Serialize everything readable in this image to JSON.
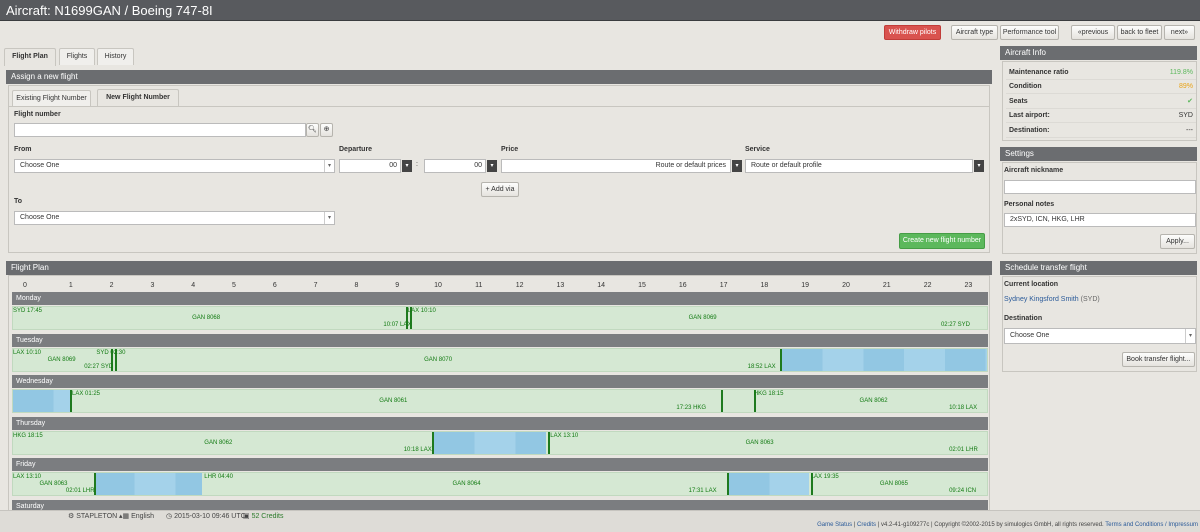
{
  "title": "Aircraft: N1699GAN / Boeing 747-8I",
  "top_buttons": {
    "withdraw": "Withdraw pilots",
    "aircraft_type": "Aircraft type",
    "performance": "Performance tool",
    "previous": "previous",
    "back": "back to fleet",
    "next": "next"
  },
  "tabs": [
    "Flight Plan",
    "Flights",
    "History"
  ],
  "assign": {
    "header": "Assign a new flight",
    "subtabs": [
      "Existing Flight Number",
      "New Flight Number"
    ],
    "flight_number_label": "Flight number",
    "from_label": "From",
    "from_value": "Choose One",
    "departure_label": "Departure",
    "dep_hour": "00",
    "dep_min": "00",
    "price_label": "Price",
    "price_value": "Route or default prices",
    "service_label": "Service",
    "service_value": "Route or default profile",
    "add_via": "+ Add via",
    "to_label": "To",
    "to_value": "Choose One",
    "create_button": "Create new flight number"
  },
  "flight_plan": {
    "header": "Flight Plan",
    "hours": [
      "0",
      "1",
      "2",
      "3",
      "4",
      "5",
      "6",
      "7",
      "8",
      "9",
      "10",
      "11",
      "12",
      "13",
      "14",
      "15",
      "16",
      "17",
      "18",
      "19",
      "20",
      "21",
      "22",
      "23"
    ],
    "days": [
      {
        "name": "Monday",
        "labels": [
          {
            "t": "SYD 17:45",
            "h": 0.0,
            "row": 0
          },
          {
            "t": "GAN 8068",
            "h": 4.4,
            "row": 1
          },
          {
            "t": "10:07 LAX",
            "h": 9.1,
            "row": 2
          },
          {
            "t": "LAX 10:10",
            "h": 9.7,
            "row": 0
          },
          {
            "t": "GAN 8069",
            "h": 16.6,
            "row": 1
          },
          {
            "t": "02:27 SYD",
            "h": 22.8,
            "row": 2
          }
        ],
        "lines": [
          9.65,
          9.75
        ],
        "blocks": []
      },
      {
        "name": "Tuesday",
        "labels": [
          {
            "t": "LAX 10:10",
            "h": 0.0,
            "row": 0
          },
          {
            "t": "GAN 8069",
            "h": 0.85,
            "row": 1
          },
          {
            "t": "02:27 SYD",
            "h": 1.75,
            "row": 2
          },
          {
            "t": "SYD 02:30",
            "h": 2.05,
            "row": 0
          },
          {
            "t": "GAN 8070",
            "h": 10.1,
            "row": 1
          },
          {
            "t": "18:52 LAX",
            "h": 18.05,
            "row": 2
          }
        ],
        "lines": [
          2.4,
          2.5,
          18.85
        ],
        "blocks": [
          [
            18.9,
            24.0
          ]
        ]
      },
      {
        "name": "Wednesday",
        "labels": [
          {
            "t": "LAX 01:25",
            "h": 1.45,
            "row": 0
          },
          {
            "t": "GAN 8061",
            "h": 9.0,
            "row": 1
          },
          {
            "t": "17:23 HKG",
            "h": 16.3,
            "row": 2
          },
          {
            "t": "HKG 18:15",
            "h": 18.2,
            "row": 0
          },
          {
            "t": "GAN 8062",
            "h": 20.8,
            "row": 1
          },
          {
            "t": "10:18 LAX",
            "h": 23.0,
            "row": 2
          }
        ],
        "lines": [
          1.4,
          17.4,
          18.2
        ],
        "blocks": [
          [
            0.0,
            1.4
          ]
        ]
      },
      {
        "name": "Thursday",
        "labels": [
          {
            "t": "HKG 18:15",
            "h": 0.0,
            "row": 0
          },
          {
            "t": "GAN 8062",
            "h": 4.7,
            "row": 1
          },
          {
            "t": "10:18 LAX",
            "h": 9.6,
            "row": 2
          },
          {
            "t": "LAX 13:10",
            "h": 13.2,
            "row": 0
          },
          {
            "t": "GAN 8063",
            "h": 18.0,
            "row": 1
          },
          {
            "t": "02:01 LHR",
            "h": 23.0,
            "row": 2
          }
        ],
        "lines": [
          10.3,
          13.15
        ],
        "blocks": [
          [
            10.35,
            13.1
          ]
        ]
      },
      {
        "name": "Friday",
        "labels": [
          {
            "t": "LAX 13:10",
            "h": 0.0,
            "row": 0
          },
          {
            "t": "GAN 8063",
            "h": 0.65,
            "row": 1
          },
          {
            "t": "02:01 LHR",
            "h": 1.3,
            "row": 2
          },
          {
            "t": "LHR 04:40",
            "h": 4.7,
            "row": 0
          },
          {
            "t": "GAN 8064",
            "h": 10.8,
            "row": 1
          },
          {
            "t": "17:31 LAX",
            "h": 16.6,
            "row": 2
          },
          {
            "t": "LAX 19:35",
            "h": 19.6,
            "row": 0
          },
          {
            "t": "GAN 8065",
            "h": 21.3,
            "row": 1
          },
          {
            "t": "09:24 ICN",
            "h": 23.0,
            "row": 2
          }
        ],
        "lines": [
          2.0,
          17.55,
          19.6
        ],
        "blocks": [
          [
            2.0,
            4.65
          ],
          [
            17.6,
            19.55
          ]
        ]
      },
      {
        "name": "Saturday",
        "labels": [],
        "lines": [],
        "blocks": []
      }
    ]
  },
  "aircraft_info": {
    "header": "Aircraft Info",
    "rows": [
      {
        "k": "Maintenance ratio",
        "v": "119.8%",
        "color": "#5cb85c"
      },
      {
        "k": "Condition",
        "v": "89%",
        "color": "#e8a317"
      },
      {
        "k": "Seats",
        "v": "✔",
        "color": "#5cb85c"
      },
      {
        "k": "Last airport:",
        "v": "SYD",
        "color": "#333333"
      },
      {
        "k": "Destination:",
        "v": "---",
        "color": "#333333"
      }
    ]
  },
  "settings": {
    "header": "Settings",
    "nickname_label": "Aircraft nickname",
    "nickname_value": "",
    "notes_label": "Personal notes",
    "notes_value": "2xSYD, ICN, HKG, LHR",
    "apply": "Apply..."
  },
  "transfer": {
    "header": "Schedule transfer flight",
    "location_label": "Current location",
    "location_value": "Sydney Kingsford Smith",
    "location_code": "(SYD)",
    "destination_label": "Destination",
    "destination_value": "Choose One",
    "book": "Book transfer flight..."
  },
  "status_bar": {
    "server": "STAPLETON",
    "language": "English",
    "time": "2015-03-10 09:46 UTC",
    "credits": "52 Credits"
  },
  "footer": {
    "game_status": "Game Status",
    "credits": "Credits",
    "version": "v4.2-41-g109277c",
    "copyright": "Copyright ©2002-2015 by simulogics GmbH, all rights reserved.",
    "terms": "Terms and Conditions / Impressum"
  }
}
